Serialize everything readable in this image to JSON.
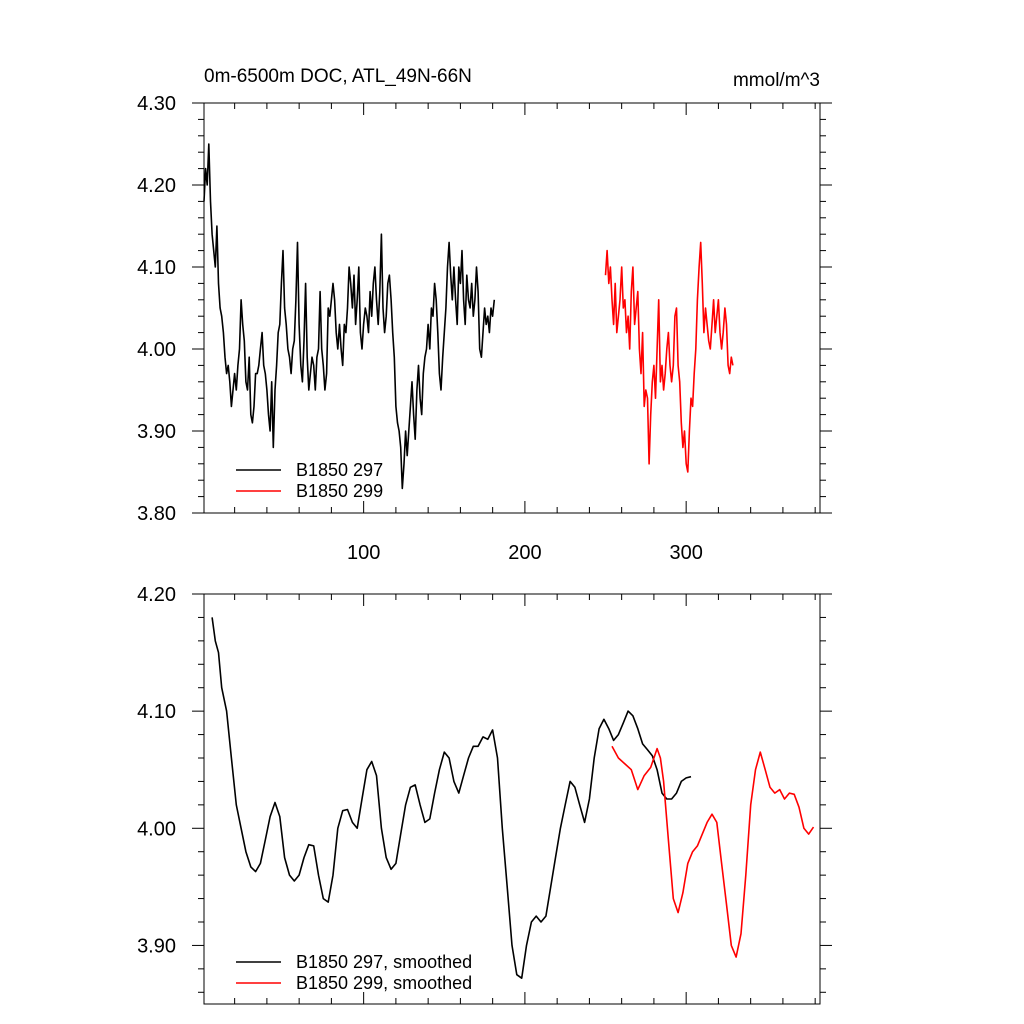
{
  "figure": {
    "title_left": "0m-6500m DOC, ATL_49N-66N",
    "title_right": "mmol/m^3"
  },
  "chart_data": [
    {
      "type": "line",
      "title": "0m-6500m DOC, ATL_49N-66N",
      "units": "mmol/m^3",
      "xlim": [
        1,
        383
      ],
      "ylim": [
        3.8,
        4.3
      ],
      "xticks": [
        100,
        200,
        300
      ],
      "xtick_labels": [
        "100",
        "200",
        "300"
      ],
      "yticks": [
        3.8,
        3.9,
        4.0,
        4.1,
        4.2,
        4.3
      ],
      "ytick_labels": [
        "3.80",
        "3.90",
        "4.00",
        "4.10",
        "4.20",
        "4.30"
      ],
      "legend": [
        "B1850 297",
        "B1850 299"
      ],
      "legend_position": "bottom-left",
      "series": [
        {
          "name": "B1850 297",
          "color": "#000000",
          "x_start": 1,
          "values": [
            4.18,
            4.22,
            4.2,
            4.25,
            4.18,
            4.14,
            4.12,
            4.1,
            4.15,
            4.08,
            4.05,
            4.04,
            4.02,
            3.99,
            3.97,
            3.98,
            3.96,
            3.93,
            3.95,
            3.97,
            3.95,
            3.98,
            4.0,
            4.06,
            4.03,
            4.01,
            3.96,
            3.95,
            3.99,
            3.92,
            3.91,
            3.93,
            3.97,
            3.97,
            3.98,
            4.0,
            4.02,
            3.98,
            3.97,
            3.95,
            3.92,
            3.9,
            3.96,
            3.88,
            3.95,
            3.98,
            4.02,
            4.03,
            4.08,
            4.12,
            4.05,
            4.03,
            4.0,
            3.99,
            3.97,
            4.0,
            4.01,
            4.06,
            4.13,
            4.03,
            3.98,
            3.96,
            4.01,
            4.08,
            3.99,
            3.95,
            3.97,
            3.99,
            3.98,
            3.95,
            3.99,
            4.0,
            4.07,
            4.0,
            3.98,
            3.95,
            3.97,
            4.05,
            4.04,
            4.06,
            4.08,
            4.06,
            4.02,
            4.0,
            4.03,
            4.0,
            3.98,
            4.03,
            4.02,
            4.05,
            4.1,
            4.08,
            4.05,
            4.09,
            4.03,
            4.06,
            4.1,
            4.02,
            4.0,
            4.03,
            4.05,
            4.04,
            4.02,
            4.07,
            4.04,
            4.08,
            4.1,
            4.06,
            4.03,
            4.07,
            4.14,
            4.05,
            4.02,
            4.04,
            4.08,
            4.09,
            4.06,
            4.02,
            3.99,
            3.93,
            3.91,
            3.9,
            3.88,
            3.83,
            3.86,
            3.9,
            3.87,
            3.9,
            3.93,
            3.96,
            3.92,
            3.89,
            3.95,
            3.98,
            3.94,
            3.92,
            3.97,
            3.99,
            4.0,
            4.03,
            4.0,
            4.05,
            4.04,
            4.08,
            4.06,
            4.02,
            3.97,
            3.95,
            3.99,
            4.02,
            4.05,
            4.1,
            4.13,
            4.09,
            4.06,
            4.1,
            4.06,
            4.03,
            4.1,
            4.08,
            4.12,
            4.06,
            4.03,
            4.09,
            4.06,
            4.05,
            4.08,
            4.04,
            4.06,
            4.1,
            4.07,
            4.0,
            3.99,
            4.02,
            4.05,
            4.03,
            4.04,
            4.02,
            4.05,
            4.04,
            4.06
          ]
        },
        {
          "name": "B1850 299",
          "color": "#ff0000",
          "x_start": 250,
          "values": [
            4.09,
            4.12,
            4.08,
            4.1,
            4.06,
            4.03,
            4.08,
            4.02,
            4.04,
            4.06,
            4.1,
            4.05,
            4.06,
            4.02,
            4.04,
            4.0,
            4.07,
            4.1,
            4.03,
            4.05,
            4.07,
            4.0,
            3.97,
            4.02,
            3.93,
            3.95,
            3.94,
            3.86,
            3.92,
            3.96,
            3.98,
            3.94,
            4.0,
            4.06,
            3.96,
            3.98,
            3.95,
            3.97,
            4.0,
            4.02,
            3.98,
            3.96,
            3.98,
            4.04,
            4.05,
            3.98,
            3.96,
            3.91,
            3.88,
            3.9,
            3.86,
            3.85,
            3.9,
            3.94,
            3.93,
            3.97,
            4.0,
            4.06,
            4.1,
            4.13,
            4.08,
            4.02,
            4.05,
            4.03,
            4.01,
            4.0,
            4.03,
            4.06,
            4.02,
            4.04,
            4.06,
            4.02,
            4.0,
            4.02,
            4.05,
            4.03,
            3.98,
            3.97,
            3.99,
            3.98
          ]
        }
      ]
    },
    {
      "type": "line",
      "xlim": [
        1,
        383
      ],
      "ylim": [
        3.85,
        4.2
      ],
      "xticks": [
        100,
        200,
        300
      ],
      "yticks": [
        3.9,
        4.0,
        4.1,
        4.2
      ],
      "ytick_labels": [
        "3.90",
        "4.00",
        "4.10",
        "4.20"
      ],
      "legend": [
        "B1850 297, smoothed",
        "B1850 299, smoothed"
      ],
      "legend_position": "bottom-left",
      "series": [
        {
          "name": "B1850 297, smoothed",
          "color": "#000000",
          "x": [
            6,
            8,
            10,
            12,
            15,
            18,
            21,
            24,
            27,
            30,
            33,
            36,
            39,
            42,
            45,
            48,
            51,
            54,
            57,
            60,
            63,
            66,
            69,
            72,
            75,
            78,
            81,
            84,
            87,
            90,
            93,
            96,
            99,
            102,
            105,
            108,
            111,
            114,
            117,
            120,
            123,
            126,
            129,
            132,
            135,
            138,
            141,
            144,
            147,
            150,
            153,
            156,
            159,
            162,
            165,
            168,
            171,
            174,
            177,
            180,
            183,
            186,
            189,
            192,
            195,
            198,
            201,
            204,
            207,
            210,
            213,
            216,
            219,
            222,
            225,
            228,
            231,
            234,
            237,
            240,
            243,
            246,
            249,
            252,
            255,
            258,
            261,
            264,
            267,
            270,
            273,
            276,
            279,
            282,
            285,
            288,
            291,
            294,
            297,
            300,
            303
          ],
          "values": [
            4.18,
            4.16,
            4.15,
            4.12,
            4.1,
            4.06,
            4.02,
            4.0,
            3.98,
            3.967,
            3.963,
            3.97,
            3.99,
            4.01,
            4.022,
            4.01,
            3.975,
            3.96,
            3.955,
            3.96,
            3.975,
            3.986,
            3.985,
            3.96,
            3.94,
            3.937,
            3.96,
            4.0,
            4.015,
            4.016,
            4.005,
            4.0,
            4.025,
            4.05,
            4.057,
            4.045,
            4.0,
            3.975,
            3.965,
            3.97,
            3.995,
            4.02,
            4.035,
            4.037,
            4.02,
            4.005,
            4.008,
            4.03,
            4.05,
            4.065,
            4.06,
            4.04,
            4.03,
            4.045,
            4.06,
            4.07,
            4.07,
            4.078,
            4.076,
            4.084,
            4.06,
            4.0,
            3.95,
            3.9,
            3.875,
            3.872,
            3.9,
            3.92,
            3.925,
            3.92,
            3.925,
            3.95,
            3.975,
            4.0,
            4.02,
            4.04,
            4.035,
            4.02,
            4.005,
            4.025,
            4.06,
            4.085,
            4.093,
            4.085,
            4.075,
            4.08,
            4.09,
            4.1,
            4.096,
            4.085,
            4.072,
            4.067,
            4.062,
            4.05,
            4.03,
            4.025,
            4.025,
            4.03,
            4.04,
            4.043,
            4.044
          ]
        },
        {
          "name": "B1850 299, smoothed",
          "color": "#ff0000",
          "x": [
            254,
            258,
            262,
            266,
            270,
            274,
            278,
            282,
            284,
            286,
            289,
            292,
            295,
            298,
            301,
            304,
            307,
            310,
            313,
            316,
            319,
            322,
            325,
            328,
            331,
            334,
            337,
            340,
            343,
            346,
            349,
            352,
            355,
            358,
            361,
            364,
            367,
            370,
            373,
            376,
            379
          ],
          "values": [
            4.07,
            4.06,
            4.055,
            4.05,
            4.033,
            4.045,
            4.052,
            4.068,
            4.06,
            4.04,
            3.99,
            3.94,
            3.928,
            3.945,
            3.97,
            3.98,
            3.985,
            3.995,
            4.005,
            4.012,
            4.005,
            3.97,
            3.935,
            3.9,
            3.89,
            3.91,
            3.96,
            4.02,
            4.05,
            4.065,
            4.05,
            4.035,
            4.03,
            4.033,
            4.025,
            4.03,
            4.029,
            4.018,
            4.0,
            3.995,
            4.001
          ]
        }
      ]
    }
  ]
}
